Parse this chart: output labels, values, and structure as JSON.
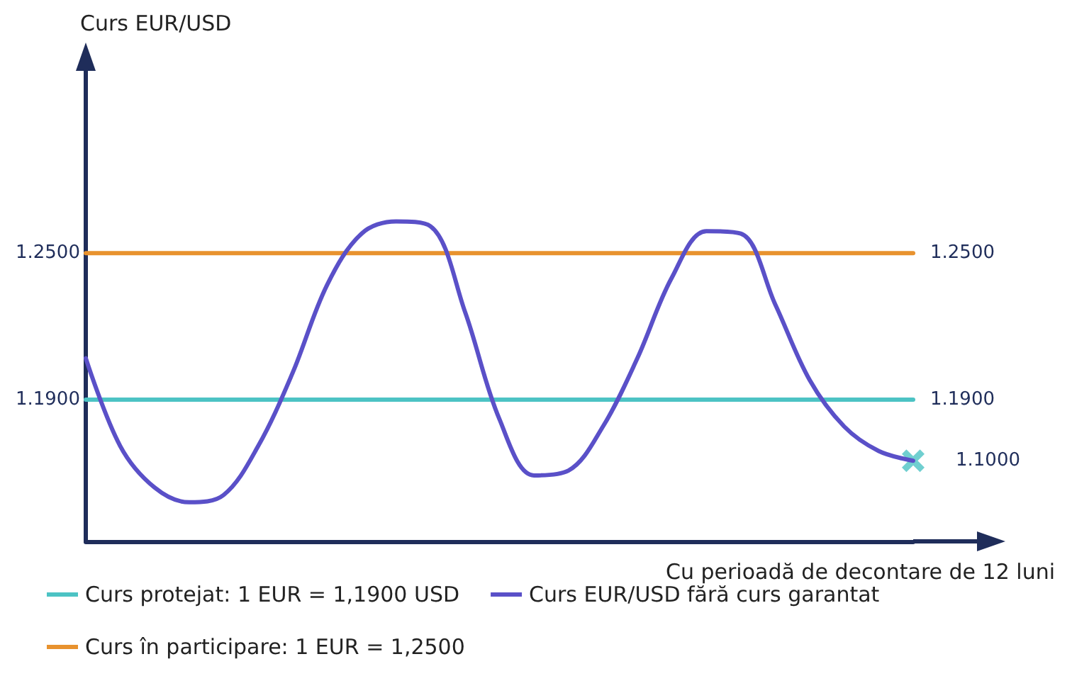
{
  "chart_data": {
    "type": "line",
    "xlabel": "Cu perioadă de decontare de 12 luni",
    "ylabel": "Curs EUR/USD",
    "categories": [
      null,
      null,
      null,
      null,
      null,
      null,
      null,
      null,
      null,
      null,
      null,
      null,
      null,
      null,
      null,
      null,
      null,
      null,
      null,
      null,
      null,
      null,
      null,
      null,
      null
    ],
    "series": [
      {
        "name": "Curs protejat: 1 EUR = 1,1900 USD",
        "color": "#4cc3c4",
        "values": [
          1.19,
          1.19,
          1.19,
          1.19,
          1.19,
          1.19,
          1.19,
          1.19,
          1.19,
          1.19,
          1.19,
          1.19,
          1.19,
          1.19,
          1.19,
          1.19,
          1.19,
          1.19,
          1.19,
          1.19,
          1.19,
          1.19,
          1.19,
          1.19,
          1.19
        ],
        "value_labels": [
          null,
          null,
          null,
          null,
          null,
          null,
          null,
          null,
          null,
          null,
          null,
          null,
          null,
          null,
          null,
          null,
          null,
          null,
          null,
          null,
          null,
          null,
          null,
          null,
          "1.1900"
        ]
      },
      {
        "name": "Curs în participare: 1 EUR = 1,2500",
        "color": "#e8922e",
        "values": [
          1.25,
          1.25,
          1.25,
          1.25,
          1.25,
          1.25,
          1.25,
          1.25,
          1.25,
          1.25,
          1.25,
          1.25,
          1.25,
          1.25,
          1.25,
          1.25,
          1.25,
          1.25,
          1.25,
          1.25,
          1.25,
          1.25,
          1.25,
          1.25,
          1.25
        ],
        "value_labels": [
          null,
          null,
          null,
          null,
          null,
          null,
          null,
          null,
          null,
          null,
          null,
          null,
          null,
          null,
          null,
          null,
          null,
          null,
          null,
          null,
          null,
          null,
          null,
          null,
          "1.2500"
        ]
      },
      {
        "name": "Curs EUR/USD fără curs garantat",
        "color": "#5a50c8",
        "values": [
          1.207,
          1.171,
          1.154,
          1.148,
          1.151,
          1.171,
          1.201,
          1.237,
          1.258,
          1.263,
          1.261,
          1.226,
          1.182,
          1.159,
          1.161,
          1.179,
          1.207,
          1.24,
          1.259,
          1.258,
          1.229,
          1.198,
          1.179,
          1.169,
          1.165
        ]
      },
      {
        "type": "scatter",
        "color": "#4cc3c4",
        "marker": "cross",
        "values": [
          null,
          null,
          null,
          null,
          null,
          null,
          null,
          null,
          null,
          null,
          null,
          null,
          null,
          null,
          null,
          null,
          null,
          null,
          null,
          null,
          null,
          null,
          null,
          null,
          1.165
        ]
      }
    ],
    "ylim": [
      1.132,
      1.32
    ],
    "yticks": [
      {
        "value": 1.19,
        "label": "1.1900"
      },
      {
        "value": 1.25,
        "label": "1.2500"
      }
    ],
    "tick_labels": "y",
    "grid": false,
    "legend": "bottom",
    "marker": "none",
    "line_style": "solid",
    "annotations": [
      "1.1000"
    ]
  }
}
